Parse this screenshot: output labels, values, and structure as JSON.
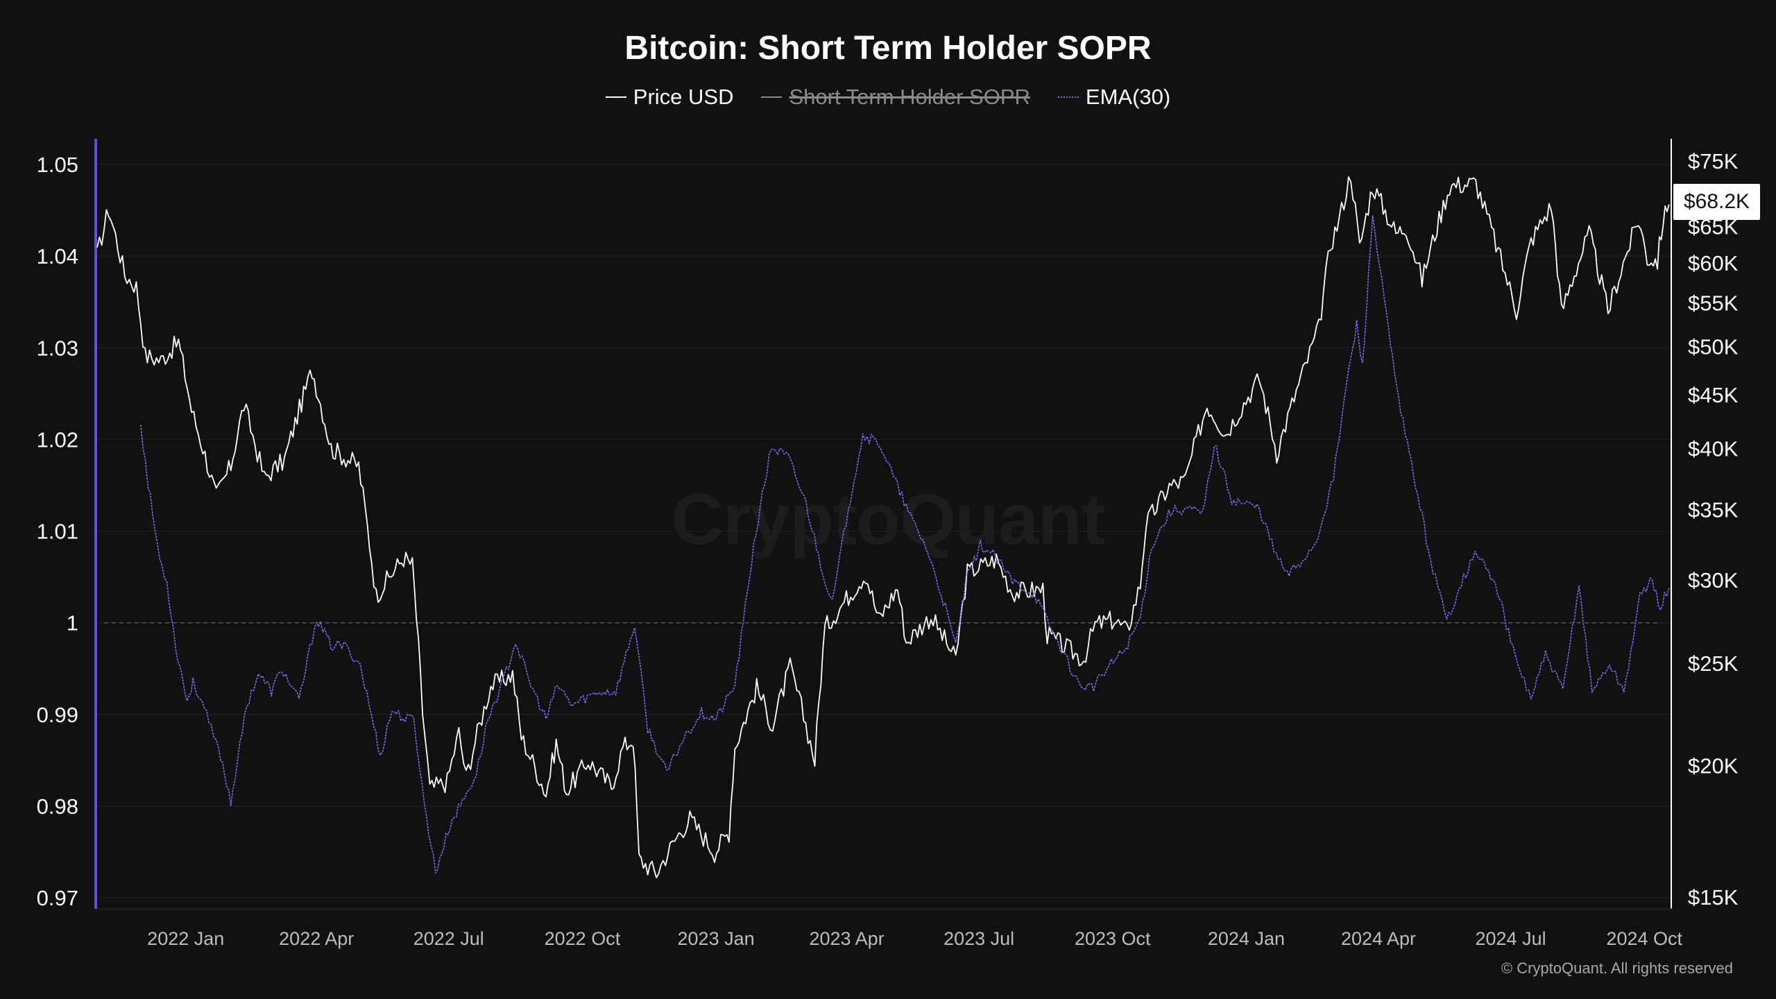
{
  "title": "Bitcoin: Short Term Holder SOPR",
  "legend": [
    {
      "label": "Price USD",
      "color": "#ffffff",
      "hidden": false
    },
    {
      "label": "Short Term Holder SOPR",
      "color": "#8a8a8a",
      "hidden": true
    },
    {
      "label": "EMA(30)",
      "color": "#7a6ff0",
      "hidden": false
    }
  ],
  "watermark": "CryptoQuant",
  "copyright": "© CryptoQuant. All rights reserved",
  "current_price_label": "$68.2K",
  "colors": {
    "background": "#111112",
    "price": "#ffffff",
    "ema": "#7a6ff0",
    "left_axis": "#5a55d8",
    "grid": "#232326"
  },
  "chart_data": {
    "type": "line",
    "title": "Bitcoin: Short Term Holder SOPR",
    "x_range": [
      "2021-11-01",
      "2024-10-20"
    ],
    "x_ticks": [
      {
        "date": "2022-01-01",
        "label": "2022 Jan"
      },
      {
        "date": "2022-04-01",
        "label": "2022 Apr"
      },
      {
        "date": "2022-07-01",
        "label": "2022 Jul"
      },
      {
        "date": "2022-10-01",
        "label": "2022 Oct"
      },
      {
        "date": "2023-01-01",
        "label": "2023 Jan"
      },
      {
        "date": "2023-04-01",
        "label": "2023 Apr"
      },
      {
        "date": "2023-07-01",
        "label": "2023 Jul"
      },
      {
        "date": "2023-10-01",
        "label": "2023 Oct"
      },
      {
        "date": "2024-01-01",
        "label": "2024 Jan"
      },
      {
        "date": "2024-04-01",
        "label": "2024 Apr"
      },
      {
        "date": "2024-07-01",
        "label": "2024 Jul"
      },
      {
        "date": "2024-10-01",
        "label": "2024 Oct"
      }
    ],
    "y_left": {
      "range": [
        0.9688,
        1.0528
      ],
      "ticks": [
        {
          "value": 1.05,
          "label": "1.05"
        },
        {
          "value": 1.04,
          "label": "1.04"
        },
        {
          "value": 1.03,
          "label": "1.03"
        },
        {
          "value": 1.02,
          "label": "1.02"
        },
        {
          "value": 1.01,
          "label": "1.01"
        },
        {
          "value": 1.0,
          "label": "1"
        },
        {
          "value": 0.99,
          "label": "0.99"
        },
        {
          "value": 0.98,
          "label": "0.98"
        },
        {
          "value": 0.97,
          "label": "0.97"
        }
      ],
      "reference_line": 1.0
    },
    "y_right": {
      "scale": "log",
      "range": [
        15000,
        75000
      ],
      "ticks": [
        {
          "value": 75000,
          "label": "$75K"
        },
        {
          "value": 65000,
          "label": "$65K"
        },
        {
          "value": 60000,
          "label": "$60K"
        },
        {
          "value": 55000,
          "label": "$55K"
        },
        {
          "value": 50000,
          "label": "$50K"
        },
        {
          "value": 45000,
          "label": "$45K"
        },
        {
          "value": 40000,
          "label": "$40K"
        },
        {
          "value": 35000,
          "label": "$35K"
        },
        {
          "value": 30000,
          "label": "$30K"
        },
        {
          "value": 25000,
          "label": "$25K"
        },
        {
          "value": 20000,
          "label": "$20K"
        },
        {
          "value": 15000,
          "label": "$15K"
        }
      ]
    },
    "series": [
      {
        "name": "Price USD",
        "axis": "right",
        "points": [
          [
            "2021-11-01",
            61000
          ],
          [
            "2021-11-09",
            67500
          ],
          [
            "2021-11-20",
            58500
          ],
          [
            "2021-11-28",
            57000
          ],
          [
            "2021-12-04",
            49000
          ],
          [
            "2021-12-15",
            48500
          ],
          [
            "2021-12-27",
            50500
          ],
          [
            "2022-01-05",
            43500
          ],
          [
            "2022-01-22",
            36000
          ],
          [
            "2022-02-01",
            38500
          ],
          [
            "2022-02-10",
            44000
          ],
          [
            "2022-02-24",
            37500
          ],
          [
            "2022-03-10",
            39000
          ],
          [
            "2022-03-29",
            47500
          ],
          [
            "2022-04-11",
            40000
          ],
          [
            "2022-04-30",
            38500
          ],
          [
            "2022-05-12",
            29000
          ],
          [
            "2022-05-31",
            31500
          ],
          [
            "2022-06-06",
            31000
          ],
          [
            "2022-06-13",
            22500
          ],
          [
            "2022-06-18",
            19000
          ],
          [
            "2022-06-30",
            19300
          ],
          [
            "2022-07-08",
            21500
          ],
          [
            "2022-07-13",
            19500
          ],
          [
            "2022-07-30",
            23800
          ],
          [
            "2022-08-14",
            24400
          ],
          [
            "2022-08-20",
            21300
          ],
          [
            "2022-09-06",
            18800
          ],
          [
            "2022-09-13",
            21000
          ],
          [
            "2022-09-20",
            18900
          ],
          [
            "2022-10-05",
            20200
          ],
          [
            "2022-10-21",
            19100
          ],
          [
            "2022-10-29",
            20800
          ],
          [
            "2022-11-05",
            21200
          ],
          [
            "2022-11-09",
            16300
          ],
          [
            "2022-11-21",
            15800
          ],
          [
            "2022-12-05",
            17100
          ],
          [
            "2022-12-14",
            17800
          ],
          [
            "2022-12-31",
            16550
          ],
          [
            "2023-01-10",
            17300
          ],
          [
            "2023-01-14",
            20800
          ],
          [
            "2023-01-29",
            23700
          ],
          [
            "2023-02-09",
            21800
          ],
          [
            "2023-02-21",
            24800
          ],
          [
            "2023-03-10",
            20200
          ],
          [
            "2023-03-17",
            27000
          ],
          [
            "2023-04-14",
            30400
          ],
          [
            "2023-04-23",
            27500
          ],
          [
            "2023-05-06",
            29500
          ],
          [
            "2023-05-12",
            26200
          ],
          [
            "2023-05-29",
            27700
          ],
          [
            "2023-06-15",
            25200
          ],
          [
            "2023-06-23",
            30500
          ],
          [
            "2023-07-13",
            31400
          ],
          [
            "2023-07-24",
            29200
          ],
          [
            "2023-08-14",
            29400
          ],
          [
            "2023-08-17",
            26600
          ],
          [
            "2023-09-11",
            25200
          ],
          [
            "2023-09-19",
            27200
          ],
          [
            "2023-10-02",
            27500
          ],
          [
            "2023-10-11",
            26800
          ],
          [
            "2023-10-20",
            29700
          ],
          [
            "2023-10-24",
            33900
          ],
          [
            "2023-11-09",
            36800
          ],
          [
            "2023-11-20",
            37300
          ],
          [
            "2023-12-05",
            44000
          ],
          [
            "2023-12-18",
            41300
          ],
          [
            "2024-01-10",
            46600
          ],
          [
            "2024-01-22",
            39600
          ],
          [
            "2024-02-09",
            47200
          ],
          [
            "2024-02-20",
            52000
          ],
          [
            "2024-02-28",
            62500
          ],
          [
            "2024-03-05",
            66000
          ],
          [
            "2024-03-13",
            73000
          ],
          [
            "2024-03-19",
            62000
          ],
          [
            "2024-03-28",
            71000
          ],
          [
            "2024-04-13",
            64000
          ],
          [
            "2024-04-20",
            64900
          ],
          [
            "2024-05-01",
            57800
          ],
          [
            "2024-05-20",
            71000
          ],
          [
            "2024-06-07",
            71500
          ],
          [
            "2024-06-24",
            60500
          ],
          [
            "2024-07-05",
            54000
          ],
          [
            "2024-07-15",
            63000
          ],
          [
            "2024-07-29",
            68000
          ],
          [
            "2024-08-05",
            53900
          ],
          [
            "2024-08-24",
            64000
          ],
          [
            "2024-09-06",
            53900
          ],
          [
            "2024-09-27",
            66000
          ],
          [
            "2024-10-03",
            60600
          ],
          [
            "2024-10-10",
            60300
          ],
          [
            "2024-10-14",
            66000
          ],
          [
            "2024-10-18",
            68200
          ]
        ]
      },
      {
        "name": "Short Term Holder SOPR",
        "axis": "left",
        "hidden": true,
        "points": []
      },
      {
        "name": "EMA(30)",
        "axis": "left",
        "points": [
          [
            "2021-12-01",
            1.0218
          ],
          [
            "2021-12-06",
            1.0152
          ],
          [
            "2021-12-14",
            1.007
          ],
          [
            "2021-12-19",
            1.0045
          ],
          [
            "2021-12-25",
            0.9975
          ],
          [
            "2022-01-02",
            0.9915
          ],
          [
            "2022-01-06",
            0.9935
          ],
          [
            "2022-01-12",
            0.9915
          ],
          [
            "2022-01-17",
            0.989
          ],
          [
            "2022-01-25",
            0.9855
          ],
          [
            "2022-02-01",
            0.9805
          ],
          [
            "2022-02-12",
            0.991
          ],
          [
            "2022-02-20",
            0.9945
          ],
          [
            "2022-03-01",
            0.9925
          ],
          [
            "2022-03-08",
            0.995
          ],
          [
            "2022-03-20",
            0.9915
          ],
          [
            "2022-04-01",
            1.0005
          ],
          [
            "2022-04-11",
            0.9975
          ],
          [
            "2022-04-20",
            0.9975
          ],
          [
            "2022-05-01",
            0.9955
          ],
          [
            "2022-05-15",
            0.9855
          ],
          [
            "2022-05-23",
            0.9905
          ],
          [
            "2022-06-01",
            0.9895
          ],
          [
            "2022-06-07",
            0.9895
          ],
          [
            "2022-06-14",
            0.9805
          ],
          [
            "2022-06-22",
            0.9728
          ],
          [
            "2022-07-02",
            0.978
          ],
          [
            "2022-07-12",
            0.981
          ],
          [
            "2022-07-20",
            0.9835
          ],
          [
            "2022-07-28",
            0.9895
          ],
          [
            "2022-08-08",
            0.9938
          ],
          [
            "2022-08-16",
            0.998
          ],
          [
            "2022-08-25",
            0.9938
          ],
          [
            "2022-09-06",
            0.9895
          ],
          [
            "2022-09-14",
            0.9932
          ],
          [
            "2022-09-24",
            0.991
          ],
          [
            "2022-10-03",
            0.9918
          ],
          [
            "2022-10-14",
            0.9925
          ],
          [
            "2022-10-24",
            0.9925
          ],
          [
            "2022-11-06",
            0.9998
          ],
          [
            "2022-11-15",
            0.9885
          ],
          [
            "2022-11-28",
            0.9836
          ],
          [
            "2022-12-10",
            0.9875
          ],
          [
            "2022-12-22",
            0.9902
          ],
          [
            "2023-01-01",
            0.9895
          ],
          [
            "2023-01-14",
            0.9932
          ],
          [
            "2023-01-27",
            1.0085
          ],
          [
            "2023-02-08",
            1.0192
          ],
          [
            "2023-02-20",
            1.018
          ],
          [
            "2023-03-04",
            1.013
          ],
          [
            "2023-03-14",
            1.0065
          ],
          [
            "2023-03-22",
            1.002
          ],
          [
            "2023-04-02",
            1.0125
          ],
          [
            "2023-04-12",
            1.0205
          ],
          [
            "2023-04-24",
            1.0195
          ],
          [
            "2023-05-06",
            1.0148
          ],
          [
            "2023-05-15",
            1.0115
          ],
          [
            "2023-05-25",
            1.0085
          ],
          [
            "2023-06-05",
            1.0032
          ],
          [
            "2023-06-15",
            0.9975
          ],
          [
            "2023-06-22",
            1.0045
          ],
          [
            "2023-07-02",
            1.0085
          ],
          [
            "2023-07-12",
            1.0072
          ],
          [
            "2023-07-24",
            1.0045
          ],
          [
            "2023-08-08",
            1.0032
          ],
          [
            "2023-08-17",
            1.0002
          ],
          [
            "2023-08-28",
            0.9968
          ],
          [
            "2023-09-08",
            0.9932
          ],
          [
            "2023-09-18",
            0.993
          ],
          [
            "2023-09-30",
            0.9955
          ],
          [
            "2023-10-10",
            0.9972
          ],
          [
            "2023-10-20",
            1.0005
          ],
          [
            "2023-10-28",
            1.0085
          ],
          [
            "2023-11-10",
            1.0122
          ],
          [
            "2023-11-22",
            1.0125
          ],
          [
            "2023-12-02",
            1.0118
          ],
          [
            "2023-12-10",
            1.0195
          ],
          [
            "2023-12-22",
            1.0135
          ],
          [
            "2024-01-10",
            1.0125
          ],
          [
            "2024-01-20",
            1.008
          ],
          [
            "2024-01-29",
            1.0052
          ],
          [
            "2024-02-07",
            1.0065
          ],
          [
            "2024-02-18",
            1.0088
          ],
          [
            "2024-03-01",
            1.0158
          ],
          [
            "2024-03-10",
            1.026
          ],
          [
            "2024-03-17",
            1.0325
          ],
          [
            "2024-03-21",
            1.028
          ],
          [
            "2024-03-28",
            1.0445
          ],
          [
            "2024-04-05",
            1.035
          ],
          [
            "2024-04-15",
            1.024
          ],
          [
            "2024-04-28",
            1.014
          ],
          [
            "2024-05-07",
            1.0068
          ],
          [
            "2024-05-18",
            1.0002
          ],
          [
            "2024-05-28",
            1.0045
          ],
          [
            "2024-06-08",
            1.0078
          ],
          [
            "2024-06-22",
            1.0035
          ],
          [
            "2024-07-04",
            0.9962
          ],
          [
            "2024-07-15",
            0.9918
          ],
          [
            "2024-07-25",
            0.9965
          ],
          [
            "2024-08-06",
            0.9925
          ],
          [
            "2024-08-17",
            1.0042
          ],
          [
            "2024-08-26",
            0.9925
          ],
          [
            "2024-09-07",
            0.9955
          ],
          [
            "2024-09-17",
            0.9925
          ],
          [
            "2024-09-28",
            1.0028
          ],
          [
            "2024-10-05",
            1.0048
          ],
          [
            "2024-10-12",
            1.0018
          ],
          [
            "2024-10-18",
            1.0038
          ]
        ]
      }
    ]
  }
}
